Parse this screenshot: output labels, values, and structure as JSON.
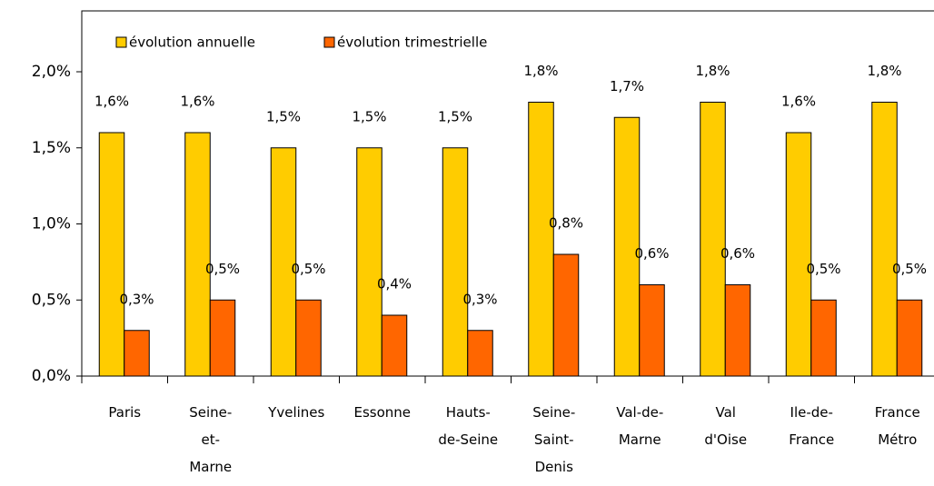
{
  "chart_data": {
    "type": "bar",
    "categories": [
      "Paris",
      "Seine-\net-\nMarne",
      "Yvelines",
      "Essonne",
      "Hauts-\nde-Seine",
      "Seine-\nSaint-\nDenis",
      "Val-de-\nMarne",
      "Val\nd'Oise",
      "Ile-de-\nFrance",
      "France\nMétro"
    ],
    "series": [
      {
        "name": "évolution annuelle",
        "color": "#ffcc00",
        "values": [
          1.6,
          1.6,
          1.5,
          1.5,
          1.5,
          1.8,
          1.7,
          1.8,
          1.6,
          1.8
        ],
        "value_labels": [
          "1,6%",
          "1,6%",
          "1,5%",
          "1,5%",
          "1,5%",
          "1,8%",
          "1,7%",
          "1,8%",
          "1,6%",
          "1,8%"
        ]
      },
      {
        "name": "évolution trimestrielle",
        "color": "#ff6600",
        "values": [
          0.3,
          0.5,
          0.5,
          0.4,
          0.3,
          0.8,
          0.6,
          0.6,
          0.5,
          0.5
        ],
        "value_labels": [
          "0,3%",
          "0,5%",
          "0,5%",
          "0,4%",
          "0,3%",
          "0,8%",
          "0,6%",
          "0,6%",
          "0,5%",
          "0,5%"
        ]
      }
    ],
    "ylim": [
      0,
      2.4
    ],
    "yticks": [
      {
        "value": 0,
        "label": "0,0%"
      },
      {
        "value": 0.5,
        "label": "0,5%"
      },
      {
        "value": 1,
        "label": "1,0%"
      },
      {
        "value": 1.5,
        "label": "1,5%"
      },
      {
        "value": 2,
        "label": "2,0%"
      }
    ],
    "legend": "top-left"
  }
}
